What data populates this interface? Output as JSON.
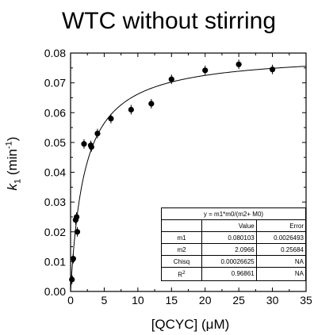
{
  "chart_data": {
    "type": "scatter",
    "title": "WTC without stirring",
    "xlabel": "[QCYC] (μM)",
    "ylabel": "k1 (min-1)",
    "xlim": [
      0,
      35
    ],
    "ylim": [
      0,
      0.08
    ],
    "x_ticks": [
      "0",
      "5",
      "10",
      "15",
      "20",
      "25",
      "30",
      "35"
    ],
    "y_ticks": [
      "0.00",
      "0.01",
      "0.02",
      "0.03",
      "0.04",
      "0.05",
      "0.06",
      "0.07",
      "0.08"
    ],
    "points": [
      {
        "x": 0.2,
        "y": 0.004
      },
      {
        "x": 0.4,
        "y": 0.011
      },
      {
        "x": 0.75,
        "y": 0.024
      },
      {
        "x": 0.9,
        "y": 0.025
      },
      {
        "x": 1.0,
        "y": 0.02
      },
      {
        "x": 2.0,
        "y": 0.0495
      },
      {
        "x": 3.0,
        "y": 0.049
      },
      {
        "x": 3.1,
        "y": 0.0485
      },
      {
        "x": 4.0,
        "y": 0.053
      },
      {
        "x": 6.0,
        "y": 0.058
      },
      {
        "x": 9.0,
        "y": 0.061
      },
      {
        "x": 12.0,
        "y": 0.063
      },
      {
        "x": 15.0,
        "y": 0.0712
      },
      {
        "x": 20.0,
        "y": 0.0742
      },
      {
        "x": 25.0,
        "y": 0.0762
      },
      {
        "x": 30.0,
        "y": 0.0745
      }
    ],
    "fit": {
      "equation": "y = m1*m0/(m2+ M0)",
      "m1": 0.080103,
      "m2": 2.0966
    },
    "grid": false
  },
  "fit_table": {
    "equation": "y = m1*m0/(m2+ M0)",
    "header": [
      "",
      "Value",
      "Error"
    ],
    "rows": [
      [
        "m1",
        "0.080103",
        "0.0026493"
      ],
      [
        "m2",
        "2.0966",
        "0.25684"
      ],
      [
        "Chisq",
        "0.00026625",
        "NA"
      ],
      [
        "R2",
        "0.96861",
        "NA"
      ]
    ]
  }
}
